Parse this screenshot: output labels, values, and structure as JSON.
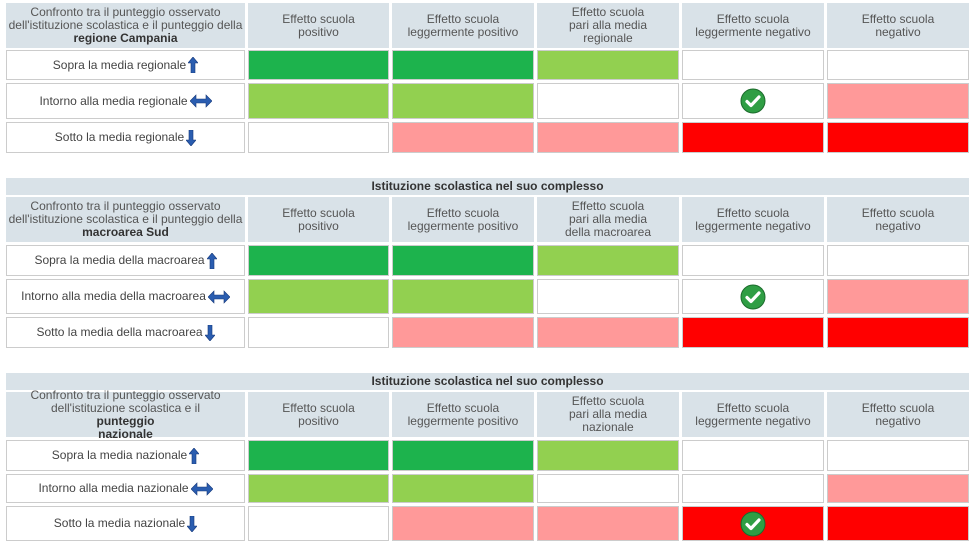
{
  "tables": [
    {
      "header_text": "Confronto tra il punteggio osservato\ndell'istituzione scolastica e il punteggio della",
      "header_bold": "regione Campania",
      "columns": [
        "Effetto scuola\npositivo",
        "Effetto scuola\nleggermente positivo",
        "Effetto scuola\npari alla media\nregionale",
        "Effetto scuola\nleggermente negativo",
        "Effetto scuola\nnegativo"
      ],
      "rows": [
        {
          "label": "Sopra la media regionale",
          "cells": [
            "#1db34d",
            "#1db34d",
            "#92d050",
            "#ffffff",
            "#ffffff"
          ]
        },
        {
          "label": "Intorno alla media regionale",
          "cells": [
            "#92d050",
            "#92d050",
            "#ffffff",
            "#ffffff",
            "#ff9999"
          ]
        },
        {
          "label": "Sotto la media regionale",
          "cells": [
            "#ffffff",
            "#ff9999",
            "#ff9999",
            "#ff0000",
            "#ff0000"
          ]
        }
      ],
      "checked": {
        "row": 1,
        "col": 3
      }
    },
    {
      "title": "Istituzione scolastica nel suo complesso",
      "header_text": "Confronto tra il punteggio osservato\ndell'istituzione scolastica e il punteggio della",
      "header_bold": "macroarea Sud",
      "columns": [
        "Effetto scuola\npositivo",
        "Effetto scuola\nleggermente positivo",
        "Effetto scuola\npari alla media\ndella macroarea",
        "Effetto scuola\nleggermente negativo",
        "Effetto scuola\nnegativo"
      ],
      "rows": [
        {
          "label": "Sopra la media della macroarea",
          "cells": [
            "#1db34d",
            "#1db34d",
            "#92d050",
            "#ffffff",
            "#ffffff"
          ]
        },
        {
          "label": "Intorno alla media della macroarea",
          "cells": [
            "#92d050",
            "#92d050",
            "#ffffff",
            "#ffffff",
            "#ff9999"
          ]
        },
        {
          "label": "Sotto la media della macroarea",
          "cells": [
            "#ffffff",
            "#ff9999",
            "#ff9999",
            "#ff0000",
            "#ff0000"
          ]
        }
      ],
      "checked": {
        "row": 1,
        "col": 3
      }
    },
    {
      "title": "Istituzione scolastica nel suo complesso",
      "header_text": "Confronto tra il punteggio osservato\ndell'istituzione scolastica e il",
      "header_bold": "punteggio\nnazionale",
      "columns": [
        "Effetto scuola\npositivo",
        "Effetto scuola\nleggermente positivo",
        "Effetto scuola\npari alla media\nnazionale",
        "Effetto scuola\nleggermente negativo",
        "Effetto scuola\nnegativo"
      ],
      "rows": [
        {
          "label": "Sopra la media nazionale",
          "cells": [
            "#1db34d",
            "#1db34d",
            "#92d050",
            "#ffffff",
            "#ffffff"
          ]
        },
        {
          "label": "Intorno alla media nazionale",
          "cells": [
            "#92d050",
            "#92d050",
            "#ffffff",
            "#ffffff",
            "#ff9999"
          ]
        },
        {
          "label": "Sotto la media nazionale",
          "cells": [
            "#ffffff",
            "#ff9999",
            "#ff9999",
            "#ff0000",
            "#ff0000"
          ]
        }
      ],
      "checked": {
        "row": 2,
        "col": 3
      }
    }
  ]
}
